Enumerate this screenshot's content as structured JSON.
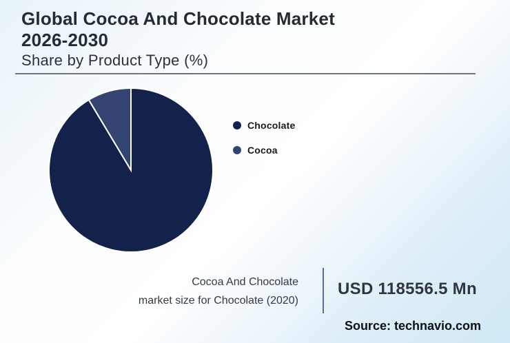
{
  "header": {
    "title": "Global Cocoa And Chocolate Market\n2026-2030",
    "subtitle": "Share by Product Type (%)"
  },
  "chart_data": {
    "type": "pie",
    "title": "Global Cocoa And Chocolate Market 2026-2030",
    "subtitle": "Share by Product Type (%)",
    "unit": "%",
    "series": [
      {
        "name": "Chocolate",
        "value": 91.4,
        "color": "#13224a"
      },
      {
        "name": "Cocoa",
        "value": 8.6,
        "color": "#32446f"
      }
    ],
    "start_angle_deg": 0,
    "direction": "clockwise",
    "slice_border_color": "#ffffff",
    "legend_position": "right",
    "data_labels_shown": false
  },
  "footer": {
    "stat_label": "Cocoa And Chocolate\nmarket size for Chocolate (2020)",
    "stat_value": "USD 118556.5 Mn",
    "source": "Source: technavio.com"
  },
  "colors": {
    "background_gradient_start": "#e7f2f9",
    "background_gradient_mid": "#ffffff",
    "background_gradient_end": "#cfe9f6",
    "top_divider": "#70757a",
    "stat_divider": "#527099",
    "title_text": "#232b33"
  }
}
